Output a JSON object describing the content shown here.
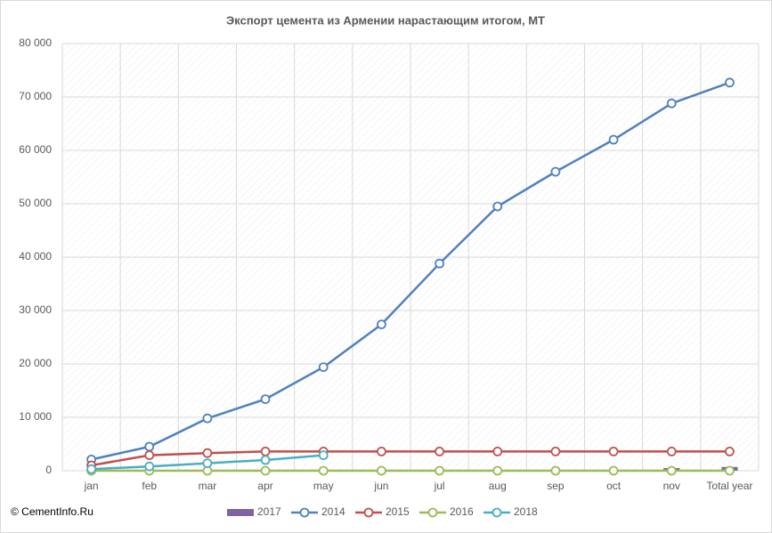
{
  "chart_data": {
    "type": "line",
    "title": "Экспорт цемента из Армении нарастающим  итогом, МТ",
    "footer": "© CementInfo.Ru",
    "categories": [
      "jan",
      "feb",
      "mar",
      "apr",
      "may",
      "jun",
      "jul",
      "aug",
      "sep",
      "oct",
      "nov",
      "Total year"
    ],
    "series": [
      {
        "name": "2017",
        "type": "bar",
        "color": "#8064a2",
        "values": [
          null,
          null,
          null,
          null,
          null,
          null,
          null,
          null,
          null,
          null,
          500,
          700
        ]
      },
      {
        "name": "2014",
        "color": "#4f81bd",
        "values": [
          2100,
          4500,
          9800,
          13400,
          19400,
          27400,
          38800,
          49500,
          56000,
          62000,
          68800,
          72700
        ]
      },
      {
        "name": "2015",
        "color": "#c0504d",
        "values": [
          1000,
          2900,
          3300,
          3600,
          3600,
          3600,
          3600,
          3600,
          3600,
          3600,
          3600,
          3600
        ]
      },
      {
        "name": "2016",
        "color": "#9bbb59",
        "values": [
          0,
          0,
          0,
          0,
          0,
          0,
          0,
          0,
          0,
          0,
          0,
          0
        ]
      },
      {
        "name": "2018",
        "color": "#4bacc6",
        "values": [
          300,
          800,
          1400,
          2000,
          2900,
          null,
          null,
          null,
          null,
          null,
          null,
          null
        ]
      }
    ],
    "ylim": [
      0,
      80000
    ],
    "yticks": [
      0,
      {
        "value": 10000,
        "label": "10 000"
      },
      {
        "value": 20000,
        "label": "20 000"
      },
      {
        "value": 30000,
        "label": "30 000"
      },
      {
        "value": 40000,
        "label": "40 000"
      },
      {
        "value": 50000,
        "label": "50 000"
      },
      {
        "value": 60000,
        "label": "60 000"
      },
      {
        "value": 70000,
        "label": "70 000"
      },
      {
        "value": 80000,
        "label": "80 000"
      }
    ],
    "grid": true,
    "legend": "bottom"
  }
}
